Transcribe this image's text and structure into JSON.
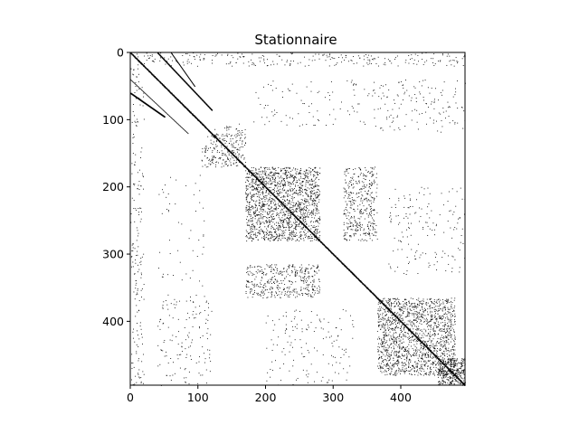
{
  "chart_data": {
    "type": "heatmap",
    "subtype": "sparsity-pattern (spy plot)",
    "title": "Stationnaire",
    "xlabel": "",
    "ylabel": "",
    "matrix_size": [
      495,
      495
    ],
    "xlim": [
      0,
      495
    ],
    "ylim": [
      495,
      0
    ],
    "x_ticks": [
      0,
      100,
      200,
      300,
      400
    ],
    "y_ticks": [
      0,
      100,
      200,
      300,
      400
    ],
    "marker_color": "#000000",
    "grid": false,
    "legend": "none",
    "structure": {
      "main_diagonal": [
        0,
        495
      ],
      "dense_blocks": [
        {
          "rows": [
            170,
            280
          ],
          "cols": [
            170,
            280
          ],
          "density": 0.09
        },
        {
          "rows": [
            365,
            480
          ],
          "cols": [
            365,
            480
          ],
          "density": 0.08
        },
        {
          "rows": [
            455,
            495
          ],
          "cols": [
            455,
            495
          ],
          "density": 0.15
        },
        {
          "rows": [
            120,
            170
          ],
          "cols": [
            105,
            170
          ],
          "density": 0.05
        }
      ],
      "off_diagonal_blocks": [
        {
          "rows": [
            170,
            280
          ],
          "cols": [
            315,
            365
          ],
          "density": 0.05
        },
        {
          "rows": [
            315,
            365
          ],
          "cols": [
            170,
            280
          ],
          "density": 0.05
        },
        {
          "rows": [
            0,
            20
          ],
          "cols": [
            0,
            495
          ],
          "density": 0.02
        },
        {
          "rows": [
            40,
            110
          ],
          "cols": [
            180,
            495
          ],
          "density": 0.008
        },
        {
          "rows": [
            200,
            330
          ],
          "cols": [
            380,
            495
          ],
          "density": 0.008
        },
        {
          "rows": [
            360,
            495
          ],
          "cols": [
            40,
            120
          ],
          "density": 0.01
        },
        {
          "rows": [
            0,
            495
          ],
          "cols": [
            0,
            20
          ],
          "density": 0.01
        },
        {
          "rows": [
            380,
            495
          ],
          "cols": [
            200,
            330
          ],
          "density": 0.005
        }
      ],
      "sub_diagonals": [
        {
          "from": [
            0,
            40
          ],
          "to": [
            85,
            120
          ],
          "note": "anti-diagonal streak near top"
        },
        {
          "from": [
            60,
            0
          ],
          "to": [
            95,
            50
          ]
        }
      ]
    }
  }
}
